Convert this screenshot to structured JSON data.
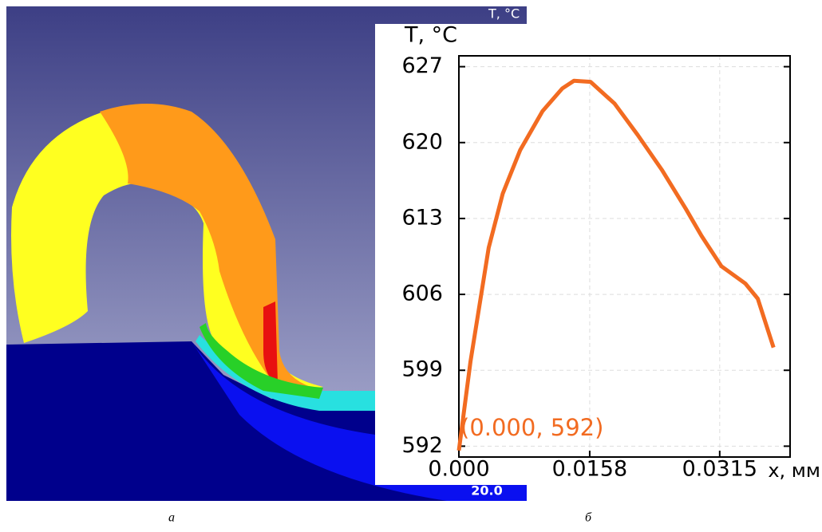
{
  "panel_a": {
    "legend_title": "T, °C",
    "legend_min": "20.0"
  },
  "captions": [
    "а",
    "б"
  ],
  "chart_data": {
    "type": "line",
    "x_label": "x, мм",
    "y_label": "T, °C",
    "annotation": "(0.000, 592)",
    "xlim": [
      0,
      0.04
    ],
    "ylim": [
      591,
      628
    ],
    "xticks": [
      {
        "value": 0,
        "label": "0.000"
      },
      0.0158,
      0.0315
    ],
    "yticks": [
      592,
      599,
      606,
      613,
      620,
      627
    ],
    "grid": true,
    "series": [
      {
        "name": "T",
        "color": "#f26b21",
        "x": [
          0,
          0.0014,
          0.0036,
          0.0053,
          0.0074,
          0.0101,
          0.0125,
          0.0139,
          0.0159,
          0.0188,
          0.0216,
          0.0245,
          0.0274,
          0.0293,
          0.0317,
          0.0346,
          0.0361,
          0.038
        ],
        "values": [
          591.6,
          599.8,
          610.3,
          615.3,
          619.3,
          622.9,
          625,
          625.7,
          625.6,
          623.6,
          620.7,
          617.5,
          613.9,
          611.4,
          608.6,
          607,
          605.6,
          601.1
        ]
      }
    ]
  }
}
